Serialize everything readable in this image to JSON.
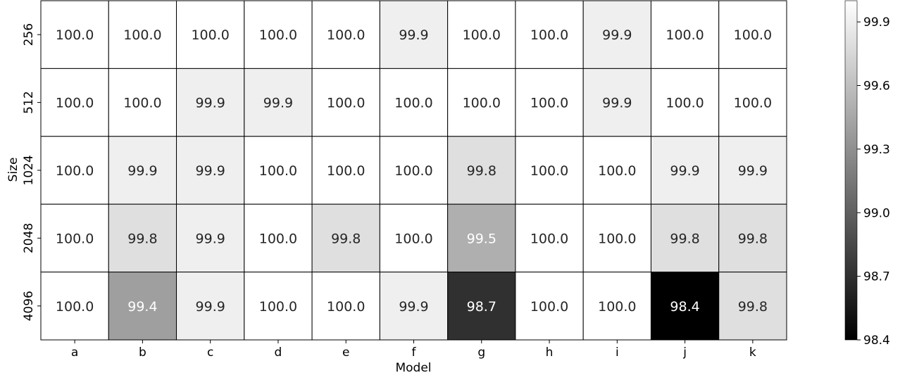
{
  "chart_data": {
    "type": "heatmap",
    "title": "",
    "xlabel": "Model",
    "ylabel": "Size",
    "x_categories": [
      "a",
      "b",
      "c",
      "d",
      "e",
      "f",
      "g",
      "h",
      "i",
      "j",
      "k"
    ],
    "y_categories": [
      "256",
      "512",
      "1024",
      "2048",
      "4096"
    ],
    "values": [
      [
        100.0,
        100.0,
        100.0,
        100.0,
        100.0,
        99.9,
        100.0,
        100.0,
        99.9,
        100.0,
        100.0
      ],
      [
        100.0,
        100.0,
        99.9,
        99.9,
        100.0,
        100.0,
        100.0,
        100.0,
        99.9,
        100.0,
        100.0
      ],
      [
        100.0,
        99.9,
        99.9,
        100.0,
        100.0,
        100.0,
        99.8,
        100.0,
        100.0,
        99.9,
        99.9
      ],
      [
        100.0,
        99.8,
        99.9,
        100.0,
        99.8,
        100.0,
        99.5,
        100.0,
        100.0,
        99.8,
        99.8
      ],
      [
        100.0,
        99.4,
        99.9,
        100.0,
        100.0,
        99.9,
        98.7,
        100.0,
        100.0,
        98.4,
        99.8
      ]
    ],
    "value_labels": [
      [
        "100.0",
        "100.0",
        "100.0",
        "100.0",
        "100.0",
        "99.9",
        "100.0",
        "100.0",
        "99.9",
        "100.0",
        "100.0"
      ],
      [
        "100.0",
        "100.0",
        "99.9",
        "99.9",
        "100.0",
        "100.0",
        "100.0",
        "100.0",
        "99.9",
        "100.0",
        "100.0"
      ],
      [
        "100.0",
        "99.9",
        "99.9",
        "100.0",
        "100.0",
        "100.0",
        "99.8",
        "100.0",
        "100.0",
        "99.9",
        "99.9"
      ],
      [
        "100.0",
        "99.8",
        "99.9",
        "100.0",
        "99.8",
        "100.0",
        "99.5",
        "100.0",
        "100.0",
        "99.8",
        "99.8"
      ],
      [
        "100.0",
        "99.4",
        "99.9",
        "100.0",
        "100.0",
        "99.9",
        "98.7",
        "100.0",
        "100.0",
        "98.4",
        "99.8"
      ]
    ],
    "colormap": "grayscale (black = low, white = high)",
    "colorbar": {
      "range": [
        98.4,
        100.0
      ],
      "ticks": [
        98.4,
        98.7,
        99.0,
        99.3,
        99.6,
        99.9
      ],
      "tick_labels": [
        "98.4",
        "98.7",
        "99.0",
        "99.3",
        "99.6",
        "99.9"
      ],
      "placement": "right"
    },
    "grid": false,
    "cell_border_color": "#000000"
  }
}
